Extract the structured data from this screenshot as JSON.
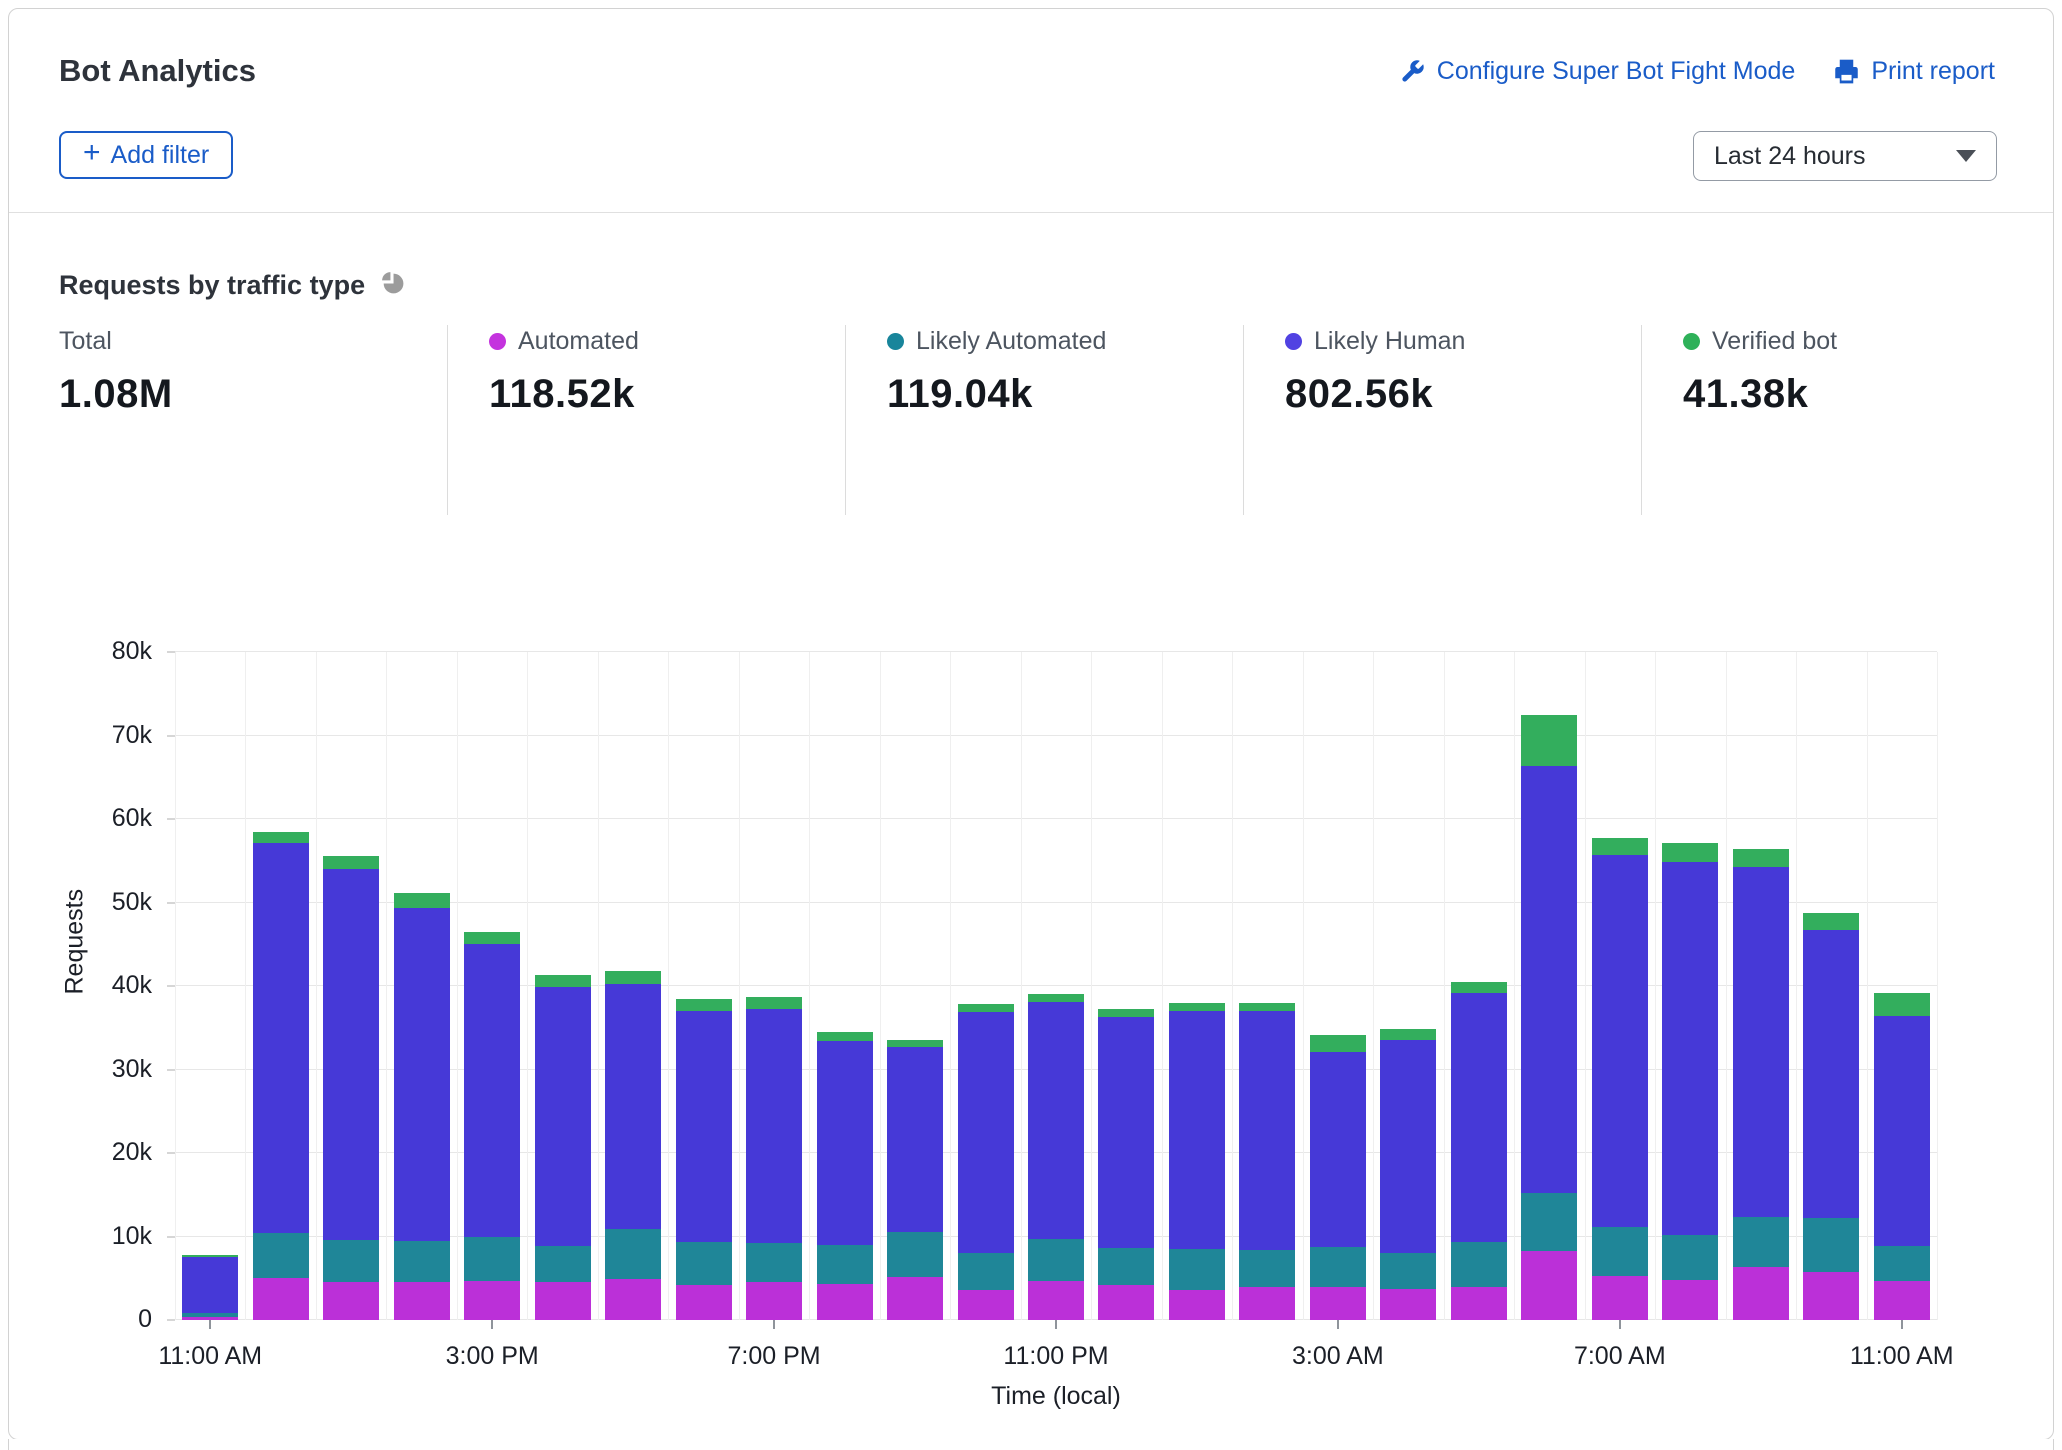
{
  "header": {
    "title": "Bot Analytics",
    "configure_link": "Configure Super Bot Fight Mode",
    "print_link": "Print report",
    "add_filter_label": "Add filter",
    "time_range_value": "Last 24 hours"
  },
  "section": {
    "heading": "Requests by traffic type"
  },
  "stats": [
    {
      "label": "Total",
      "value": "1.08M",
      "color": null
    },
    {
      "label": "Automated",
      "value": "118.52k",
      "color": "#c433de"
    },
    {
      "label": "Likely Automated",
      "value": "119.04k",
      "color": "#18859b"
    },
    {
      "label": "Likely Human",
      "value": "802.56k",
      "color": "#5142e2"
    },
    {
      "label": "Verified bot",
      "value": "41.38k",
      "color": "#2eb159"
    }
  ],
  "chart_data": {
    "type": "bar",
    "stacked": true,
    "title": "Requests by traffic type",
    "xlabel": "Time (local)",
    "ylabel": "Requests",
    "value_unit": "thousands of requests",
    "ylim": [
      0,
      80
    ],
    "ytick_labels": [
      "0",
      "10k",
      "20k",
      "30k",
      "40k",
      "50k",
      "60k",
      "70k",
      "80k"
    ],
    "xtick_labels": [
      "11:00 AM",
      "3:00 PM",
      "7:00 PM",
      "11:00 PM",
      "3:00 AM",
      "7:00 AM",
      "11:00 AM"
    ],
    "xtick_bar_indices": [
      0,
      4,
      8,
      12,
      16,
      20,
      24
    ],
    "categories": [
      "11:00 AM",
      "12:00 PM",
      "1:00 PM",
      "2:00 PM",
      "3:00 PM",
      "4:00 PM",
      "5:00 PM",
      "6:00 PM",
      "7:00 PM",
      "8:00 PM",
      "9:00 PM",
      "10:00 PM",
      "11:00 PM",
      "12:00 AM",
      "1:00 AM",
      "2:00 AM",
      "3:00 AM",
      "4:00 AM",
      "5:00 AM",
      "6:00 AM",
      "7:00 AM",
      "8:00 AM",
      "9:00 AM",
      "10:00 AM",
      "11:00 AM"
    ],
    "series": [
      {
        "name": "Automated",
        "color": "#bb30d8",
        "values": [
          0.4,
          5.0,
          4.6,
          4.6,
          4.7,
          4.5,
          4.9,
          4.2,
          4.5,
          4.3,
          5.2,
          3.6,
          4.7,
          4.2,
          3.6,
          3.9,
          3.9,
          3.7,
          3.9,
          8.3,
          5.3,
          4.8,
          6.3,
          5.7,
          4.7
        ]
      },
      {
        "name": "Likely Automated",
        "color": "#1f8698",
        "values": [
          0.5,
          5.4,
          5.0,
          4.9,
          5.3,
          4.4,
          6.0,
          5.2,
          4.7,
          4.7,
          5.3,
          4.4,
          5.0,
          4.4,
          4.9,
          4.5,
          4.8,
          4.3,
          5.4,
          6.9,
          5.9,
          5.4,
          6.0,
          6.5,
          4.2
        ]
      },
      {
        "name": "Likely Human",
        "color": "#4639d7",
        "values": [
          6.6,
          46.7,
          44.4,
          39.8,
          35.0,
          31.0,
          29.3,
          27.6,
          28.0,
          24.4,
          22.2,
          28.9,
          28.4,
          27.7,
          28.5,
          28.6,
          23.4,
          25.5,
          29.9,
          51.2,
          44.5,
          44.7,
          41.9,
          34.5,
          27.5
        ]
      },
      {
        "name": "Verified bot",
        "color": "#33ae5d",
        "values": [
          0.3,
          1.4,
          1.6,
          1.8,
          1.5,
          1.4,
          1.6,
          1.4,
          1.5,
          1.1,
          0.8,
          1.0,
          0.9,
          0.9,
          1.0,
          1.0,
          2.0,
          1.4,
          1.3,
          6.0,
          2.0,
          2.2,
          2.2,
          2.1,
          2.8
        ]
      }
    ],
    "legend_position": "top",
    "grid": true
  }
}
